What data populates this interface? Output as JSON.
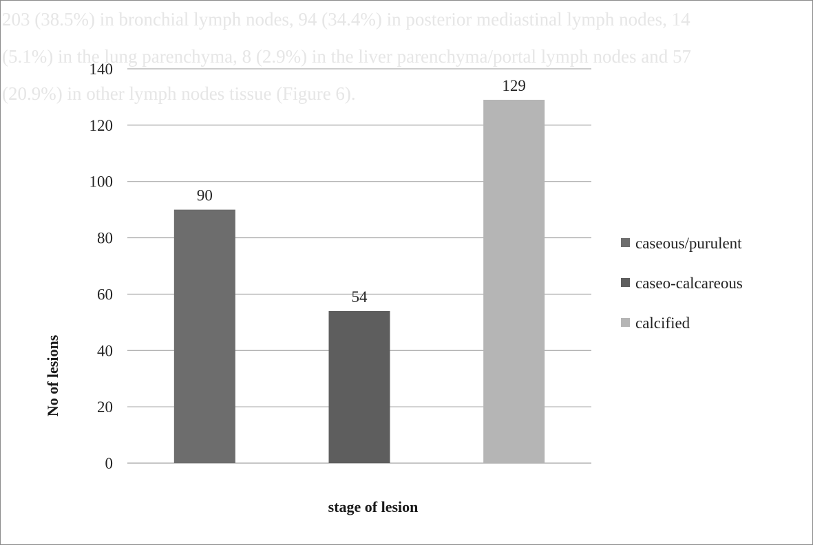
{
  "background_text": [
    "203 (38.5%) in bronchial lymph nodes, 94 (34.4%) in posterior mediastinal lymph nodes, 14",
    "(5.1%) in the lung parenchyma, 8 (2.9%) in the liver parenchyma/portal lymph nodes and 57",
    "(20.9%) in other lymph nodes tissue (Figure 6)."
  ],
  "chart_data": {
    "type": "bar",
    "title": "",
    "xlabel": "stage of lesion",
    "ylabel": "No of lesions",
    "ylim": [
      0,
      140
    ],
    "yticks": [
      0,
      20,
      40,
      60,
      80,
      100,
      120,
      140
    ],
    "grid": true,
    "legend_position": "right",
    "series": [
      {
        "name": "caseous/purulent",
        "value": 90,
        "color": "#6d6d6d"
      },
      {
        "name": "caseo-calcareous",
        "value": 54,
        "color": "#5e5e5e"
      },
      {
        "name": "calcified",
        "value": 129,
        "color": "#b5b5b5"
      }
    ]
  }
}
